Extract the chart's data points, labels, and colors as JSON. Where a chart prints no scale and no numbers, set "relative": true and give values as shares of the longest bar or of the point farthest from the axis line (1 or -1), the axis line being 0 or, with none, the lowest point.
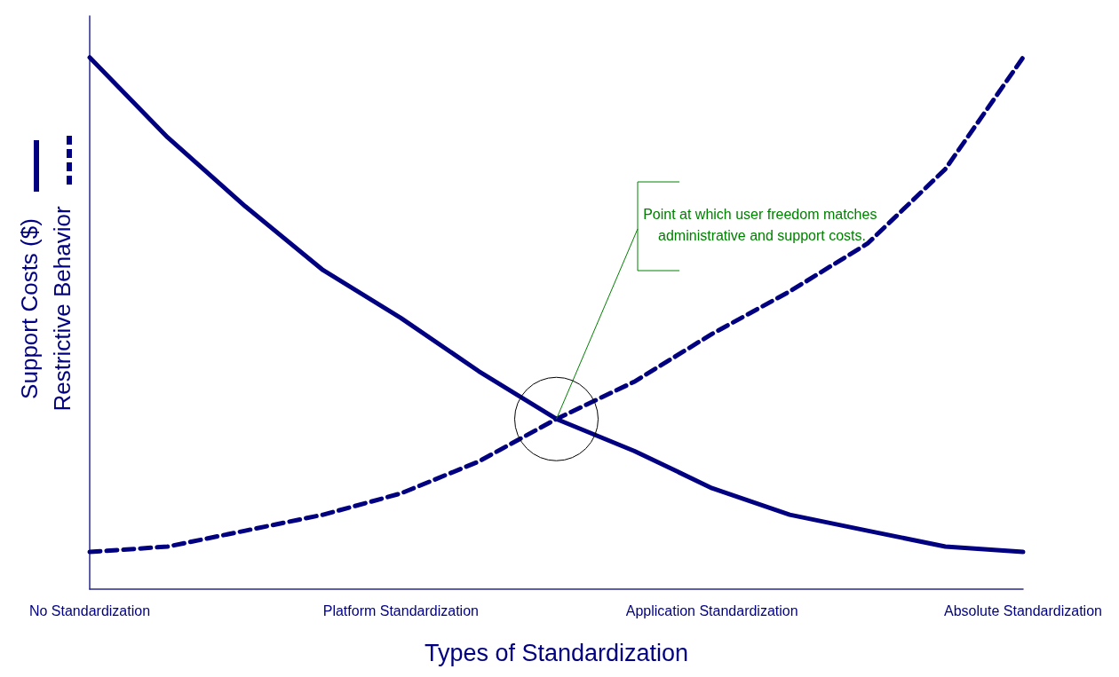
{
  "chart_data": {
    "type": "line",
    "relative": true,
    "xlabel": "Types of Standardization",
    "categories": [
      "No Standardization",
      null,
      null,
      null,
      "Platform Standardization",
      null,
      null,
      null,
      "Application Standardization",
      null,
      null,
      null,
      "Absolute Standardization"
    ],
    "legend": "left",
    "grid": false,
    "marker": "none",
    "annotations": [
      "Point at which user freedom matches administrative and support costs."
    ],
    "series": [
      {
        "name": "Support Costs ($)",
        "color": "#000080",
        "line_style": "solid",
        "values": [
          1,
          0.85,
          0.72,
          0.6,
          0.51,
          0.41,
          0.32,
          0.26,
          0.19,
          0.14,
          0.11,
          0.08,
          0.07
        ]
      },
      {
        "name": "Restrictive Behavior",
        "color": "#000080",
        "line_style": "dashed",
        "values": [
          0.07,
          0.08,
          0.11,
          0.14,
          0.18,
          0.24,
          0.32,
          0.39,
          0.48,
          0.56,
          0.65,
          0.79,
          1
        ]
      }
    ]
  }
}
